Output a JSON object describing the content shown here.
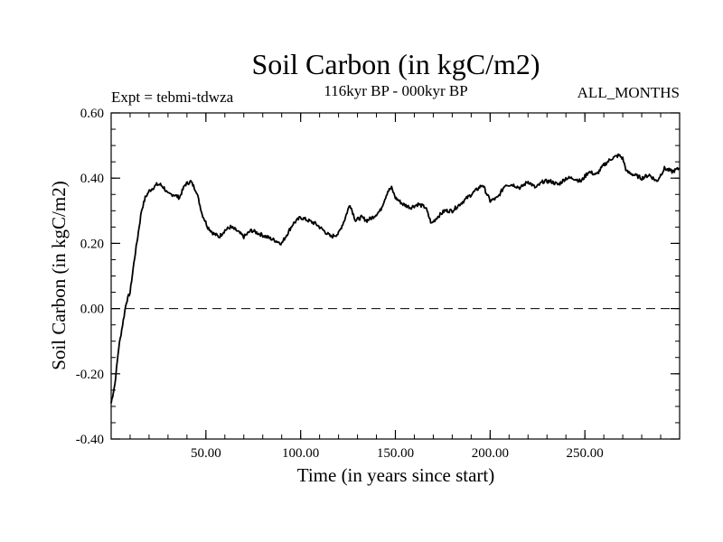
{
  "chart_data": {
    "type": "line",
    "title": "Soil Carbon (in kgC/m2)",
    "subtitle": "116kyr BP - 000kyr BP",
    "left_annotation": "Expt = tebmi-tdwza",
    "right_annotation": "ALL_MONTHS",
    "xlabel": "Time (in years since start)",
    "ylabel": "Soil Carbon (in kgC/m2)",
    "xlim": [
      0,
      300
    ],
    "ylim": [
      -0.4,
      0.6
    ],
    "x_ticks": [
      50,
      100,
      150,
      200,
      250
    ],
    "x_tick_labels": [
      "50.00",
      "100.00",
      "150.00",
      "200.00",
      "250.00"
    ],
    "y_ticks": [
      -0.4,
      -0.2,
      0.0,
      0.2,
      0.4,
      0.6
    ],
    "y_tick_labels": [
      "-0.40",
      "-0.20",
      "0.00",
      "0.20",
      "0.40",
      "0.60"
    ],
    "reference_line": {
      "y": 0.0,
      "style": "dashed"
    },
    "grid": false,
    "series": [
      {
        "name": "Soil Carbon",
        "x": [
          0,
          2,
          4,
          6,
          8,
          10,
          12,
          14,
          16,
          18,
          20,
          22,
          24,
          26,
          28,
          30,
          33,
          36,
          39,
          42,
          45,
          48,
          51,
          54,
          57,
          60,
          63,
          66,
          70,
          74,
          78,
          82,
          86,
          90,
          93,
          96,
          100,
          104,
          108,
          112,
          116,
          120,
          123,
          126,
          129,
          132,
          135,
          138,
          142,
          146,
          148,
          150,
          154,
          158,
          162,
          166,
          169,
          172,
          176,
          180,
          184,
          188,
          192,
          196,
          200,
          204,
          208,
          212,
          216,
          220,
          224,
          228,
          232,
          236,
          240,
          244,
          248,
          252,
          256,
          260,
          264,
          268,
          270,
          272,
          276,
          280,
          284,
          288,
          292,
          296,
          300
        ],
        "y": [
          -0.29,
          -0.23,
          -0.12,
          -0.05,
          0.02,
          0.05,
          0.14,
          0.22,
          0.3,
          0.34,
          0.36,
          0.37,
          0.38,
          0.38,
          0.37,
          0.35,
          0.35,
          0.34,
          0.38,
          0.39,
          0.36,
          0.29,
          0.25,
          0.23,
          0.22,
          0.24,
          0.25,
          0.24,
          0.22,
          0.24,
          0.23,
          0.22,
          0.21,
          0.2,
          0.23,
          0.26,
          0.28,
          0.27,
          0.26,
          0.24,
          0.22,
          0.23,
          0.27,
          0.32,
          0.27,
          0.28,
          0.27,
          0.28,
          0.3,
          0.36,
          0.37,
          0.34,
          0.32,
          0.31,
          0.32,
          0.31,
          0.26,
          0.28,
          0.3,
          0.3,
          0.32,
          0.34,
          0.36,
          0.38,
          0.33,
          0.34,
          0.38,
          0.38,
          0.37,
          0.39,
          0.37,
          0.39,
          0.39,
          0.38,
          0.4,
          0.4,
          0.39,
          0.42,
          0.41,
          0.44,
          0.46,
          0.47,
          0.46,
          0.42,
          0.41,
          0.4,
          0.41,
          0.39,
          0.43,
          0.42,
          0.43
        ]
      }
    ]
  }
}
